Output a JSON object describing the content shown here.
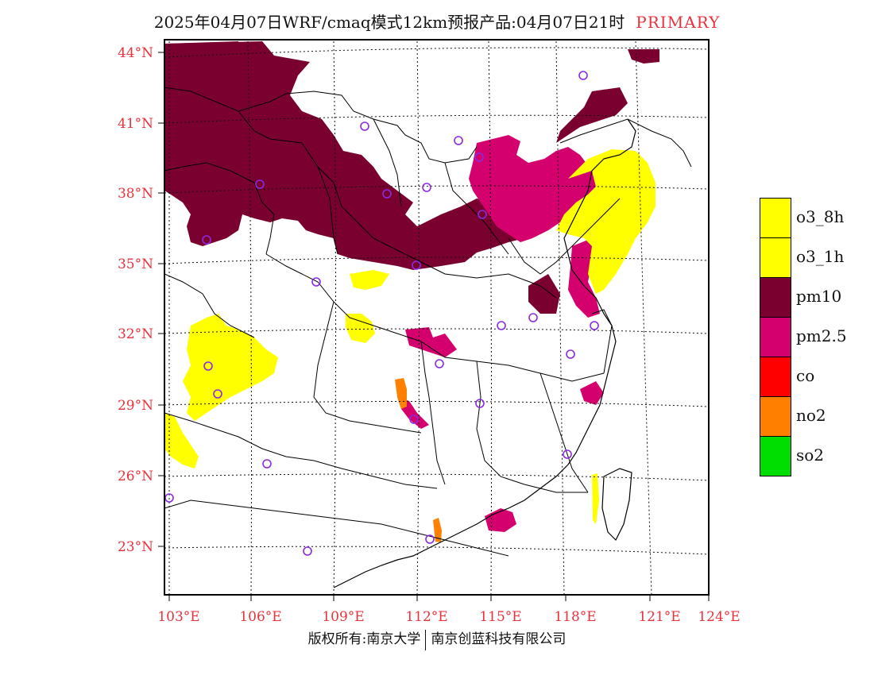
{
  "title": {
    "text": "2025年04月07日WRF/cmaq模式12km预报产品:04月07日21时",
    "tag": "PRIMARY"
  },
  "axes": {
    "lat_labels": [
      "44°N",
      "41°N",
      "38°N",
      "35°N",
      "32°N",
      "29°N",
      "26°N",
      "23°N"
    ],
    "lon_labels": [
      "103°E",
      "106°E",
      "109°E",
      "112°E",
      "115°E",
      "118°E",
      "121°E",
      "124°E"
    ],
    "label_color": "#e8323c"
  },
  "legend": [
    {
      "label": "o3_8h",
      "color": "#ffff00"
    },
    {
      "label": "o3_1h",
      "color": "#ffff00"
    },
    {
      "label": "pm10",
      "color": "#7a0030"
    },
    {
      "label": "pm2.5",
      "color": "#d4006e"
    },
    {
      "label": "co",
      "color": "#ff0000"
    },
    {
      "label": "no2",
      "color": "#ff8000"
    },
    {
      "label": "so2",
      "color": "#00dd00"
    }
  ],
  "copyright": {
    "left": "版权所有:南京大学",
    "right": "南京创蓝科技有限公司"
  },
  "colors": {
    "pm10": "#7a0030",
    "pm25": "#d4006e",
    "o3": "#ffff00",
    "no2": "#ff8000",
    "station": "#8a2be2"
  }
}
